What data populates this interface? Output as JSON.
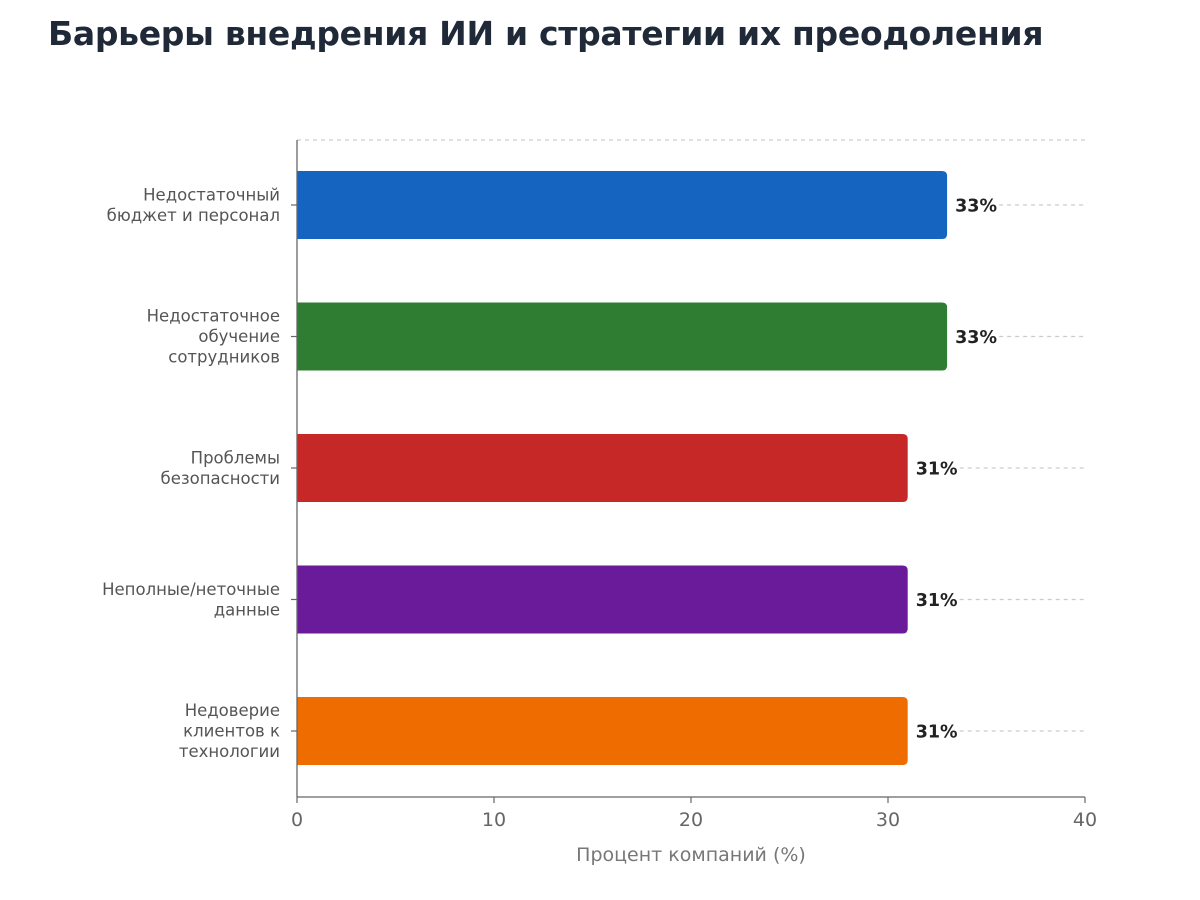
{
  "chart_data": {
    "type": "bar",
    "orientation": "horizontal",
    "title": "Барьеры внедрения ИИ и стратегии их преодоления",
    "xlabel": "Процент компаний (%)",
    "ylabel": "",
    "xlim": [
      0,
      40
    ],
    "xticks": [
      "0",
      "10",
      "20",
      "30",
      "40"
    ],
    "categories": [
      [
        "Недостаточный",
        "бюджет и персонал"
      ],
      [
        "Недостаточное",
        "обучение",
        "сотрудников"
      ],
      [
        "Проблемы",
        "безопасности"
      ],
      [
        "Неполные/неточные",
        "данные"
      ],
      [
        "Недоверие",
        "клиентов к",
        "технологии"
      ]
    ],
    "values": [
      33,
      33,
      31,
      31,
      31
    ],
    "value_labels": [
      "33%",
      "33%",
      "31%",
      "31%",
      "31%"
    ],
    "colors": [
      "#1565c0",
      "#2e7d32",
      "#c62828",
      "#6a1b9a",
      "#ef6c00"
    ],
    "grid": "dashed horizontal lines",
    "legend": "none"
  }
}
